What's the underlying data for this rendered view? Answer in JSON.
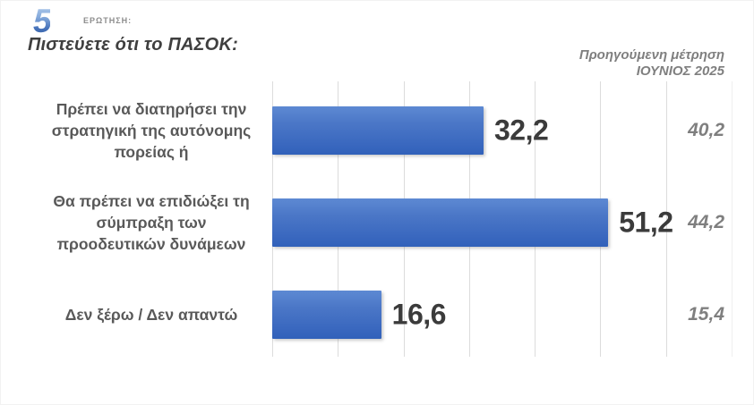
{
  "header": {
    "logo_number": "5",
    "logo_caption": "ΕΡΩΤΗΣΗ:",
    "title": "Πιστεύετε ότι το ΠΑΣΟΚ:",
    "previous_measure_note": "Προηγούμενη μέτρηση",
    "previous_measure_period": "ΙΟΥΝΙΟΣ 2025"
  },
  "rows": [
    {
      "label": "Πρέπει να διατηρήσει την\nστρατηγική της αυτόνομης\nπορείας ή",
      "value": "32,2",
      "previous": "40,2"
    },
    {
      "label": "Θα πρέπει να επιδιώξει τη\nσύμπραξη των\nπροοδευτικών δυνάμεων",
      "value": "51,2",
      "previous": "44,2"
    },
    {
      "label": "Δεν ξέρω / Δεν απαντώ",
      "value": "16,6",
      "previous": "15,4"
    }
  ],
  "chart_data": {
    "type": "bar",
    "orientation": "horizontal",
    "title": "Πιστεύετε ότι το ΠΑΣΟΚ:",
    "categories": [
      "Πρέπει να διατηρήσει την στρατηγική της αυτόνομης πορείας ή",
      "Θα πρέπει να επιδιώξει τη σύμπραξη των προοδευτικών δυνάμεων",
      "Δεν ξέρω / Δεν απαντώ"
    ],
    "values": [
      32.2,
      51.2,
      16.6
    ],
    "previous": {
      "label": "Προηγούμενη μέτρηση ΙΟΥΝΙΟΣ 2025",
      "values": [
        40.2,
        44.2,
        15.4
      ]
    },
    "xlim": [
      0,
      70
    ],
    "gridline_step": 10,
    "grid": true,
    "legend": "none",
    "decimal_separator": ","
  },
  "colors": {
    "bar": "#4472c4",
    "title": "#3f3f3f",
    "category_label": "#595959",
    "value_label": "#3b3b3b",
    "muted": "#7f7f7f",
    "gridline": "#dcdcdc",
    "logo_blue": "#4a7cc2"
  }
}
